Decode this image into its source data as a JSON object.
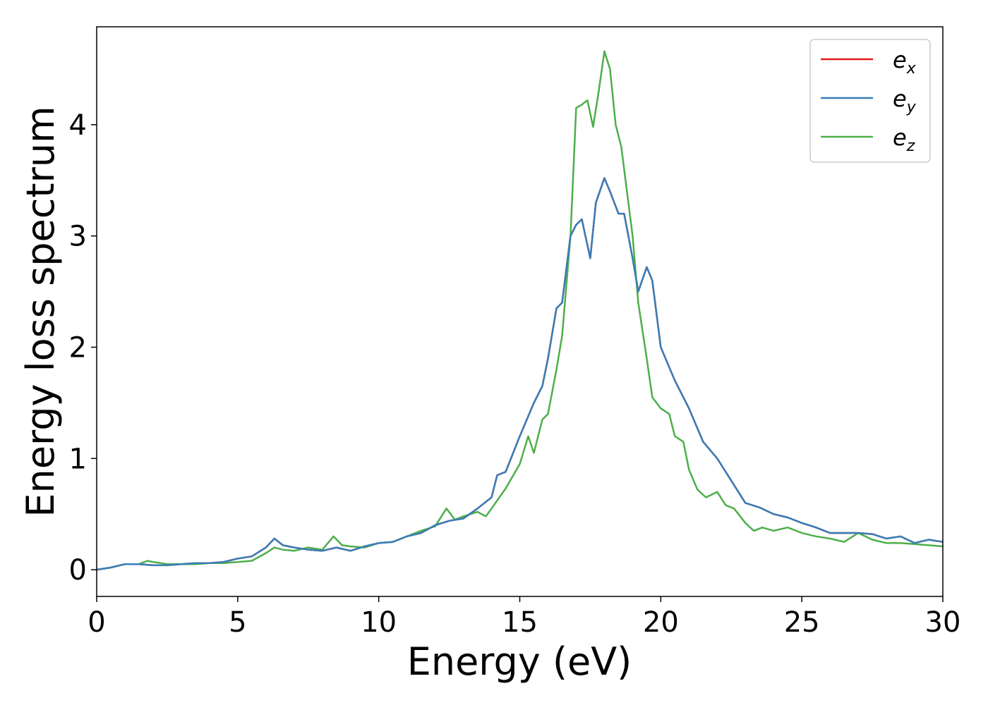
{
  "chart_data": {
    "type": "line",
    "title": "",
    "xlabel": "Energy (eV)",
    "ylabel": "Energy loss spectrum",
    "xlim": [
      0,
      30
    ],
    "ylim": [
      -0.24,
      4.88
    ],
    "xticks": [
      "0",
      "5",
      "10",
      "15",
      "20",
      "25",
      "30"
    ],
    "xtick_values": [
      0,
      5,
      10,
      15,
      20,
      25,
      30
    ],
    "yticks": [
      "0",
      "1",
      "2",
      "3",
      "4"
    ],
    "ytick_values": [
      0,
      1,
      2,
      3,
      4
    ],
    "grid": false,
    "legend_position": "top-right",
    "series": [
      {
        "name": "e_x",
        "legend_main": "e",
        "legend_sub": "x",
        "color": "#e41a1c",
        "x": [
          0,
          0.5,
          1,
          1.5,
          2,
          2.5,
          3,
          3.5,
          4,
          4.5,
          5,
          5.5,
          6,
          6.3,
          6.6,
          7,
          7.5,
          8,
          8.5,
          9,
          9.5,
          10,
          10.5,
          11,
          11.5,
          12,
          12.5,
          13,
          13.5,
          14,
          14.2,
          14.5,
          15,
          15.5,
          15.8,
          16,
          16.3,
          16.5,
          16.8,
          17,
          17.2,
          17.5,
          17.7,
          18,
          18.2,
          18.5,
          18.7,
          19,
          19.2,
          19.5,
          19.7,
          20,
          20.5,
          21,
          21.5,
          22,
          22.5,
          23,
          23.5,
          24,
          24.5,
          25,
          25.5,
          26,
          26.5,
          27,
          27.5,
          28,
          28.5,
          29,
          29.5,
          30
        ],
        "y": [
          0,
          0.02,
          0.05,
          0.05,
          0.04,
          0.04,
          0.05,
          0.06,
          0.06,
          0.07,
          0.1,
          0.12,
          0.2,
          0.28,
          0.22,
          0.2,
          0.18,
          0.17,
          0.2,
          0.17,
          0.21,
          0.24,
          0.25,
          0.3,
          0.33,
          0.4,
          0.44,
          0.46,
          0.55,
          0.65,
          0.85,
          0.88,
          1.2,
          1.5,
          1.65,
          1.9,
          2.35,
          2.4,
          3.0,
          3.1,
          3.15,
          2.8,
          3.3,
          3.52,
          3.4,
          3.2,
          3.2,
          2.8,
          2.5,
          2.72,
          2.6,
          2.0,
          1.7,
          1.45,
          1.15,
          1.0,
          0.8,
          0.6,
          0.56,
          0.5,
          0.47,
          0.42,
          0.38,
          0.33,
          0.33,
          0.33,
          0.32,
          0.28,
          0.3,
          0.24,
          0.27,
          0.25
        ]
      },
      {
        "name": "e_y",
        "legend_main": "e",
        "legend_sub": "y",
        "color": "#377eb8",
        "x": [
          0,
          0.5,
          1,
          1.5,
          2,
          2.5,
          3,
          3.5,
          4,
          4.5,
          5,
          5.5,
          6,
          6.3,
          6.6,
          7,
          7.5,
          8,
          8.5,
          9,
          9.5,
          10,
          10.5,
          11,
          11.5,
          12,
          12.5,
          13,
          13.5,
          14,
          14.2,
          14.5,
          15,
          15.5,
          15.8,
          16,
          16.3,
          16.5,
          16.8,
          17,
          17.2,
          17.5,
          17.7,
          18,
          18.2,
          18.5,
          18.7,
          19,
          19.2,
          19.5,
          19.7,
          20,
          20.5,
          21,
          21.5,
          22,
          22.5,
          23,
          23.5,
          24,
          24.5,
          25,
          25.5,
          26,
          26.5,
          27,
          27.5,
          28,
          28.5,
          29,
          29.5,
          30
        ],
        "y": [
          0,
          0.02,
          0.05,
          0.05,
          0.04,
          0.04,
          0.05,
          0.06,
          0.06,
          0.07,
          0.1,
          0.12,
          0.2,
          0.28,
          0.22,
          0.2,
          0.18,
          0.17,
          0.2,
          0.17,
          0.21,
          0.24,
          0.25,
          0.3,
          0.33,
          0.4,
          0.44,
          0.46,
          0.55,
          0.65,
          0.85,
          0.88,
          1.2,
          1.5,
          1.65,
          1.9,
          2.35,
          2.4,
          3.0,
          3.1,
          3.15,
          2.8,
          3.3,
          3.52,
          3.4,
          3.2,
          3.2,
          2.8,
          2.5,
          2.72,
          2.6,
          2.0,
          1.7,
          1.45,
          1.15,
          1.0,
          0.8,
          0.6,
          0.56,
          0.5,
          0.47,
          0.42,
          0.38,
          0.33,
          0.33,
          0.33,
          0.32,
          0.28,
          0.3,
          0.24,
          0.27,
          0.25
        ]
      },
      {
        "name": "e_z",
        "legend_main": "e",
        "legend_sub": "z",
        "color": "#4daf4a",
        "x": [
          0,
          0.5,
          1,
          1.5,
          1.8,
          2,
          2.5,
          3,
          3.5,
          4,
          4.5,
          5,
          5.5,
          6,
          6.3,
          6.6,
          7,
          7.5,
          8,
          8.4,
          8.7,
          9,
          9.5,
          10,
          10.5,
          11,
          11.5,
          12,
          12.4,
          12.7,
          13,
          13.5,
          13.8,
          14,
          14.5,
          15,
          15.3,
          15.5,
          15.8,
          16,
          16.3,
          16.5,
          16.8,
          17,
          17.2,
          17.4,
          17.6,
          17.8,
          18,
          18.2,
          18.4,
          18.6,
          18.8,
          19,
          19.2,
          19.5,
          19.7,
          20,
          20.3,
          20.5,
          20.8,
          21,
          21.3,
          21.6,
          22,
          22.3,
          22.6,
          23,
          23.3,
          23.6,
          24,
          24.5,
          25,
          25.5,
          26,
          26.5,
          27,
          27.5,
          28,
          28.5,
          29,
          29.5,
          30
        ],
        "y": [
          0,
          0.02,
          0.05,
          0.05,
          0.08,
          0.07,
          0.05,
          0.05,
          0.05,
          0.06,
          0.06,
          0.07,
          0.08,
          0.15,
          0.2,
          0.18,
          0.17,
          0.2,
          0.18,
          0.3,
          0.22,
          0.21,
          0.2,
          0.24,
          0.25,
          0.3,
          0.35,
          0.39,
          0.55,
          0.45,
          0.48,
          0.52,
          0.48,
          0.55,
          0.73,
          0.95,
          1.2,
          1.05,
          1.35,
          1.4,
          1.8,
          2.1,
          3.0,
          4.15,
          4.18,
          4.22,
          3.98,
          4.3,
          4.66,
          4.5,
          4.0,
          3.8,
          3.4,
          3.0,
          2.4,
          1.9,
          1.55,
          1.45,
          1.4,
          1.2,
          1.15,
          0.9,
          0.72,
          0.65,
          0.7,
          0.58,
          0.55,
          0.42,
          0.35,
          0.38,
          0.35,
          0.38,
          0.33,
          0.3,
          0.28,
          0.25,
          0.33,
          0.27,
          0.24,
          0.24,
          0.23,
          0.22,
          0.21
        ]
      }
    ]
  }
}
